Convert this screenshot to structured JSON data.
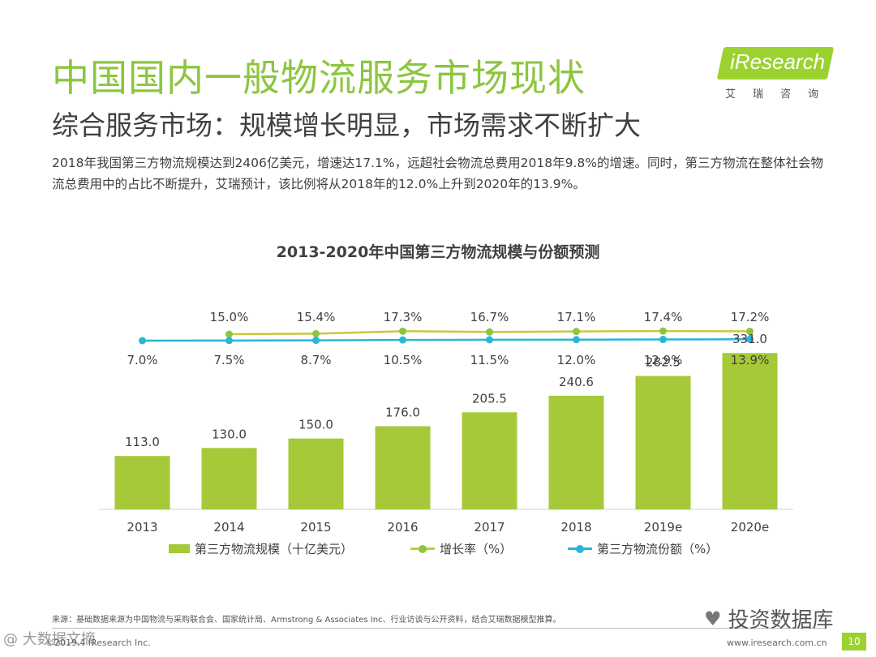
{
  "title": "中国国内一般物流服务市场现状",
  "subtitle": "综合服务市场：规模增长明显，市场需求不断扩大",
  "description": "2018年我国第三方物流规模达到2406亿美元，增速达17.1%，远超社会物流总费用2018年9.8%的增速。同时，第三方物流在整体社会物流总费用中的占比不断提升，艾瑞预计，该比例将从2018年的12.0%上升到2020年的13.9%。",
  "logo": {
    "text": "iResearch",
    "cn": "艾瑞咨询"
  },
  "colors": {
    "bar": "#a5c938",
    "growth_line": "#c8c83c",
    "growth_dot": "#8cc63f",
    "share_line": "#2ab5d9",
    "accent": "#8cc63f"
  },
  "chart_data": {
    "type": "bar",
    "title": "2013-2020年中国第三方物流规模与份额预测",
    "categories": [
      "2013",
      "2014",
      "2015",
      "2016",
      "2017",
      "2018",
      "2019e",
      "2020e"
    ],
    "series": [
      {
        "name": "第三方物流规模（十亿美元）",
        "kind": "bar",
        "values": [
          113.0,
          130.0,
          150.0,
          176.0,
          205.5,
          240.6,
          282.5,
          331.0
        ],
        "labels": [
          "113.0",
          "130.0",
          "150.0",
          "176.0",
          "205.5",
          "240.6",
          "282.5",
          "331.0"
        ]
      },
      {
        "name": "增长率（%）",
        "kind": "line",
        "values": [
          null,
          15.0,
          15.4,
          17.3,
          16.7,
          17.1,
          17.4,
          17.2
        ],
        "labels": [
          "",
          "15.0%",
          "15.4%",
          "17.3%",
          "16.7%",
          "17.1%",
          "17.4%",
          "17.2%"
        ]
      },
      {
        "name": "第三方物流份额（%）",
        "kind": "line",
        "values": [
          7.0,
          7.5,
          8.7,
          10.5,
          11.5,
          12.0,
          12.9,
          13.9
        ],
        "labels": [
          "7.0%",
          "7.5%",
          "8.7%",
          "10.5%",
          "11.5%",
          "12.0%",
          "12.9%",
          "13.9%"
        ]
      }
    ],
    "ylim": [
      0,
      340
    ],
    "xlabel": "",
    "ylabel": "",
    "grid": false,
    "legend_position": "bottom"
  },
  "source": "来源：基础数据来源为中国物流与采购联合会、国家统计局、Armstrong & Associates Inc、行业访谈与公开资料，结合艾瑞数据模型推算。",
  "copyright": "©2019.4 iResearch Inc.",
  "website": "www.iresearch.com.cn",
  "page_number": "10",
  "watermark": "投资数据库",
  "watermark_left": "@ 大数据文摘"
}
